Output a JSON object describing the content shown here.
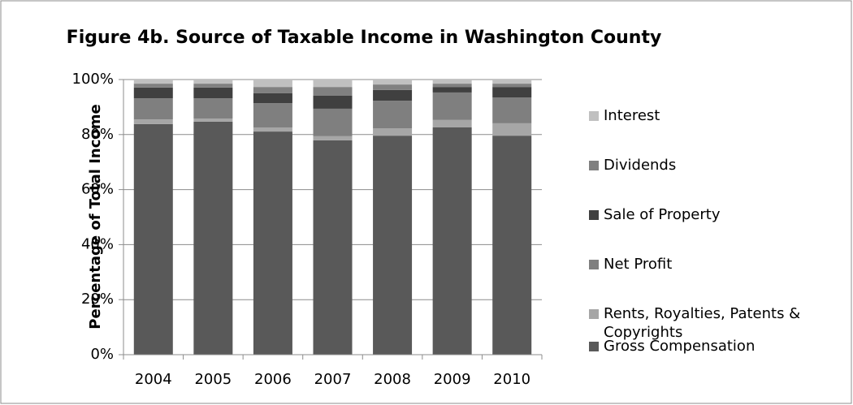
{
  "chart_data": {
    "type": "stacked_bar",
    "title": "Figure 4b. Source of Taxable Income in Washington County",
    "y_label": "Percentage of Total Income",
    "categories": [
      "2004",
      "2005",
      "2006",
      "2007",
      "2008",
      "2009",
      "2010"
    ],
    "series": [
      {
        "name": "Gross Compensation",
        "color": "#595959",
        "values": [
          83.8,
          84.7,
          81.1,
          77.9,
          79.6,
          82.6,
          79.6
        ]
      },
      {
        "name": "Rents, Royalties, Patents & Copyrights",
        "color": "#a6a6a6",
        "values": [
          1.7,
          1.1,
          1.5,
          1.5,
          2.7,
          2.7,
          4.5
        ]
      },
      {
        "name": "Net Profit",
        "color": "#7f7f7f",
        "values": [
          7.7,
          7.4,
          8.8,
          10.0,
          10.0,
          10.0,
          9.4
        ]
      },
      {
        "name": "Sale of Property",
        "color": "#404040",
        "values": [
          3.9,
          3.9,
          3.6,
          4.7,
          3.9,
          2.0,
          3.8
        ]
      },
      {
        "name": "Dividends",
        "color": "#808080",
        "values": [
          1.4,
          1.4,
          2.3,
          3.2,
          2.0,
          1.2,
          1.2
        ]
      },
      {
        "name": "Interest",
        "color": "#c0c0c0",
        "values": [
          1.5,
          1.5,
          2.7,
          2.7,
          1.8,
          1.5,
          1.5
        ]
      }
    ],
    "ylim": [
      0,
      100
    ],
    "yticks": [
      {
        "value": 0,
        "label": "0%"
      },
      {
        "value": 20,
        "label": "20%"
      },
      {
        "value": 40,
        "label": "40%"
      },
      {
        "value": 60,
        "label": "60%"
      },
      {
        "value": 80,
        "label": "80%"
      },
      {
        "value": 100,
        "label": "100%"
      }
    ],
    "grid": true,
    "legend": "right"
  }
}
